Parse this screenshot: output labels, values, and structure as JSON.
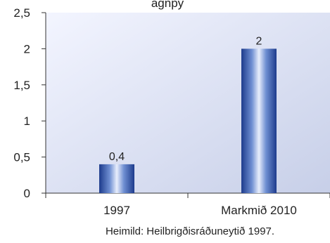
{
  "chart_data": {
    "type": "bar",
    "title": "",
    "title_fragment": "agnpý",
    "categories": [
      "1997",
      "Markmið 2010"
    ],
    "values": [
      0.4,
      2
    ],
    "data_labels": [
      "0,4",
      "2"
    ],
    "ylim": [
      0,
      2.5
    ],
    "yticks": [
      0,
      0.5,
      1,
      1.5,
      2,
      2.5
    ],
    "ytick_labels": [
      "0",
      "0,5",
      "1",
      "1,5",
      "2",
      "2,5"
    ],
    "xlabel": "",
    "ylabel": "",
    "source_note": "Heimild: Heilbrigðisráðuneytið 1997.",
    "grid": false,
    "legend": "none",
    "colors": {
      "bar_dark": "#1d3b8c",
      "bar_mid": "#6f8fd2",
      "bar_light": "#e8eefc",
      "plot_bg_top_left": "#f3f5ff",
      "plot_bg_bottom_right": "#c7cfe8",
      "axis": "#333333"
    }
  }
}
